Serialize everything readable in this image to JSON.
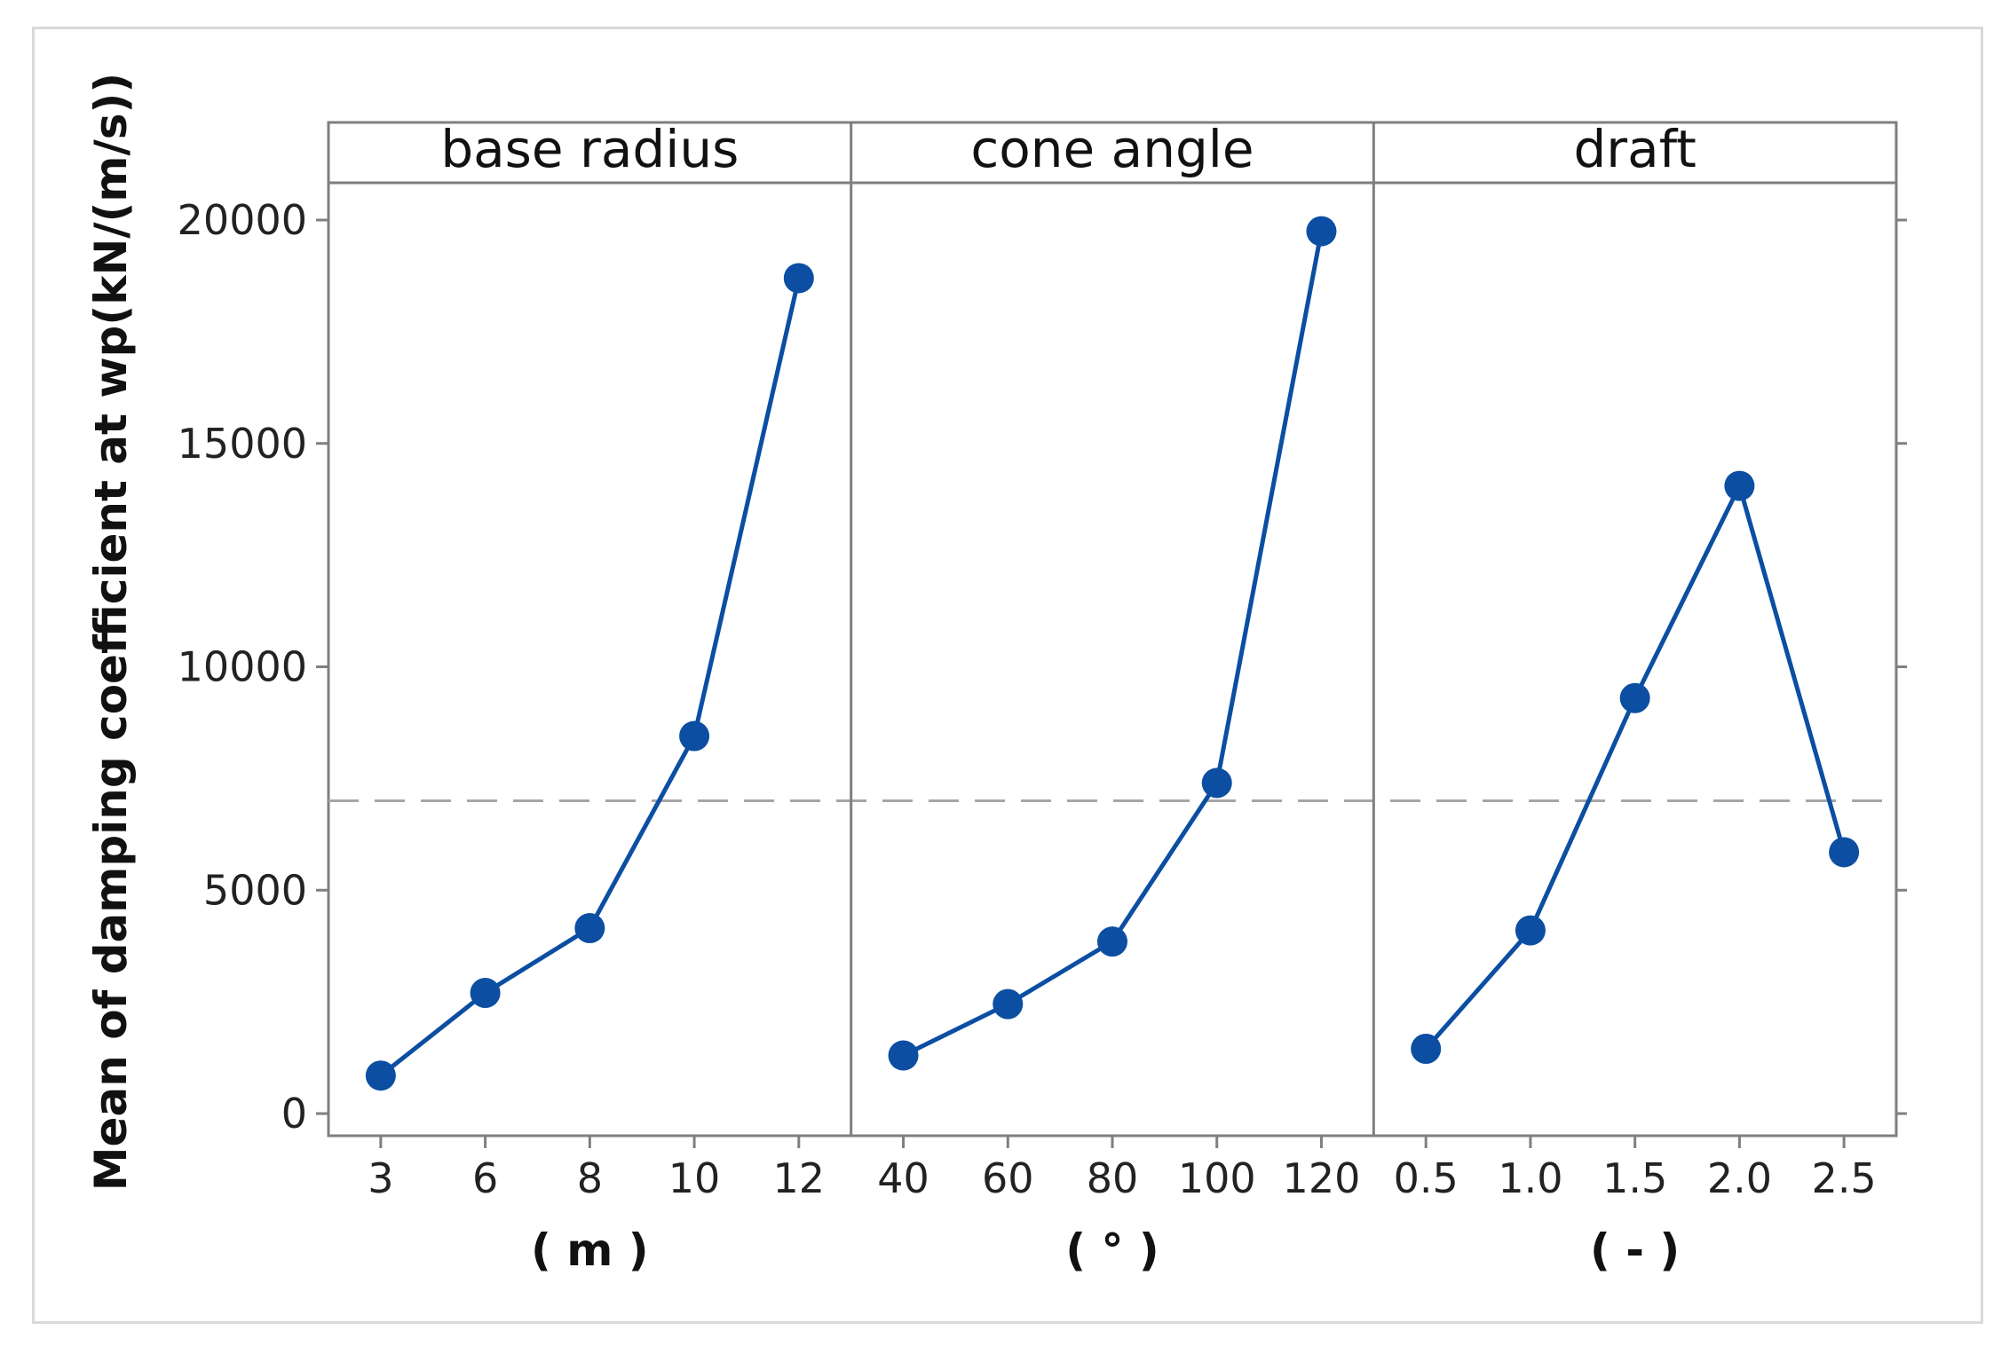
{
  "chart_data": {
    "type": "line",
    "ylabel": "Mean of damping coefficient at wp(kN/(m/s))",
    "ylim": [
      0,
      20000
    ],
    "yticks": [
      "0",
      "5000",
      "10000",
      "15000",
      "20000"
    ],
    "reference_line": {
      "value": 7000,
      "style": "dashed",
      "color": "#a6a6a6"
    },
    "series_color": "#0b4ea2",
    "panels": [
      {
        "title": "base radius",
        "unit": "( m )",
        "categories": [
          "3",
          "6",
          "8",
          "10",
          "12"
        ],
        "values": [
          850,
          2700,
          4150,
          8450,
          18700
        ]
      },
      {
        "title": "cone angle",
        "unit": "( ° )",
        "categories": [
          "40",
          "60",
          "80",
          "100",
          "120"
        ],
        "values": [
          1300,
          2450,
          3850,
          7400,
          19750
        ]
      },
      {
        "title": "draft",
        "unit": "( - )",
        "categories": [
          "0.5",
          "1.0",
          "1.5",
          "2.0",
          "2.5"
        ],
        "values": [
          1450,
          4100,
          9300,
          14050,
          5850
        ]
      }
    ]
  }
}
